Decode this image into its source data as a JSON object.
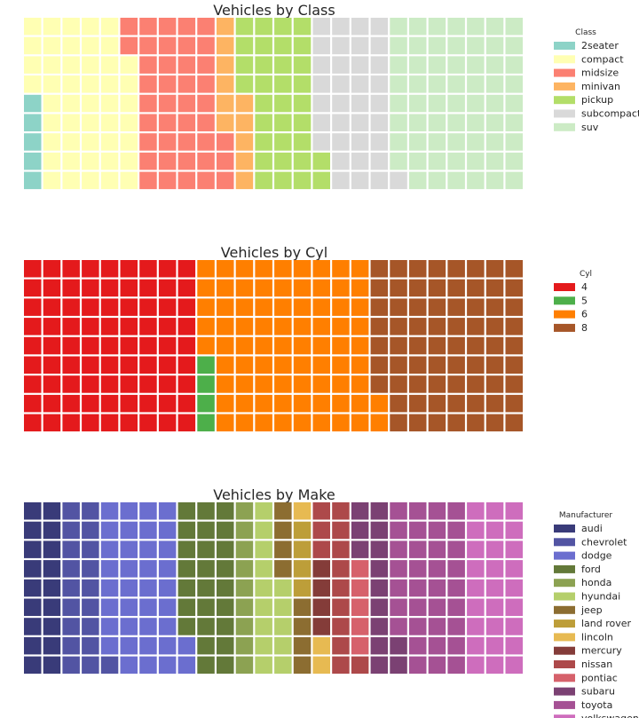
{
  "chart_data": [
    {
      "type": "waffle",
      "title": "Vehicles by Class",
      "rows": 9,
      "columns": 26,
      "legend_title": "Class",
      "legend_placement": "right",
      "fill_order": "column-wise from bottom-left",
      "series": [
        {
          "name": "2seater",
          "value": 5,
          "color": "#8dd3c7"
        },
        {
          "name": "compact",
          "value": 47,
          "color": "#ffffb3"
        },
        {
          "name": "midsize",
          "value": 41,
          "color": "#fb8072"
        },
        {
          "name": "minivan",
          "value": 11,
          "color": "#fdb462"
        },
        {
          "name": "pickup",
          "value": 33,
          "color": "#b3de69"
        },
        {
          "name": "subcompact",
          "value": 35,
          "color": "#d9d9d9"
        },
        {
          "name": "suv",
          "value": 62,
          "color": "#ccebc5"
        }
      ]
    },
    {
      "type": "waffle",
      "title": "Vehicles by Cyl",
      "rows": 9,
      "columns": 26,
      "legend_title": "Cyl",
      "legend_placement": "right",
      "fill_order": "column-wise from bottom-left",
      "series": [
        {
          "name": "4",
          "value": 81,
          "color": "#e41a1c"
        },
        {
          "name": "5",
          "value": 4,
          "color": "#4daf4a"
        },
        {
          "name": "6",
          "value": 79,
          "color": "#ff7f00"
        },
        {
          "name": "8",
          "value": 70,
          "color": "#a65628"
        }
      ]
    },
    {
      "type": "waffle",
      "title": "Vehicles by Make",
      "rows": 9,
      "columns": 26,
      "legend_title": "Manufacturer",
      "legend_placement": "right",
      "fill_order": "column-wise from bottom-left",
      "series": [
        {
          "name": "audi",
          "value": 18,
          "color": "#393b79"
        },
        {
          "name": "chevrolet",
          "value": 19,
          "color": "#5254a3"
        },
        {
          "name": "dodge",
          "value": 37,
          "color": "#6b6ecf"
        },
        {
          "name": "ford",
          "value": 25,
          "color": "#637939"
        },
        {
          "name": "honda",
          "value": 9,
          "color": "#8ca252"
        },
        {
          "name": "hyundai",
          "value": 14,
          "color": "#b5cf6b"
        },
        {
          "name": "jeep",
          "value": 8,
          "color": "#8c6d31"
        },
        {
          "name": "land rover",
          "value": 4,
          "color": "#bd9e39"
        },
        {
          "name": "lincoln",
          "value": 3,
          "color": "#e7ba52"
        },
        {
          "name": "mercury",
          "value": 4,
          "color": "#843c39"
        },
        {
          "name": "nissan",
          "value": 13,
          "color": "#ad494a"
        },
        {
          "name": "pontiac",
          "value": 5,
          "color": "#d6616b"
        },
        {
          "name": "subaru",
          "value": 14,
          "color": "#7b4173"
        },
        {
          "name": "toyota",
          "value": 34,
          "color": "#a55194"
        },
        {
          "name": "volkswagen",
          "value": 27,
          "color": "#ce6dbd"
        }
      ]
    }
  ]
}
